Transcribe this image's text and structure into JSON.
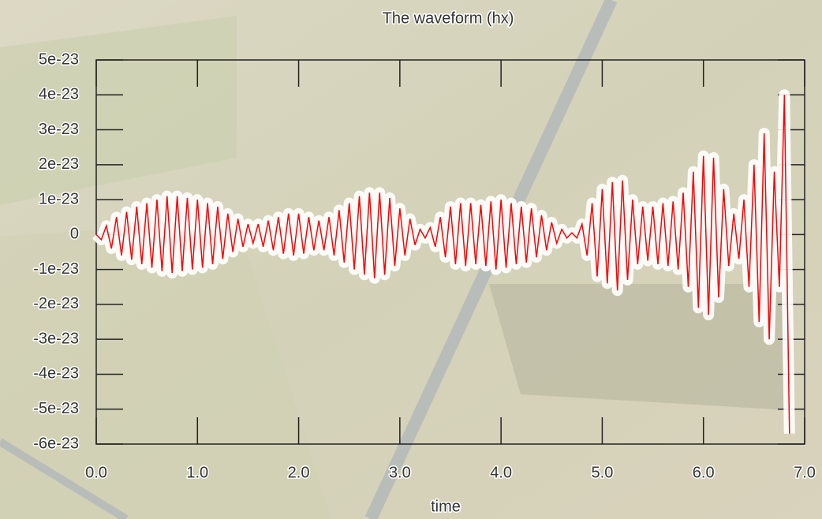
{
  "chart_data": {
    "type": "line",
    "title": "The  waveform (hx)",
    "x_label": "time",
    "color": "#ff0000",
    "xlim": [
      0,
      7
    ],
    "ylim": [
      -6e-23,
      5e-23
    ],
    "xticks": [
      {
        "value": 0,
        "label": "0.0"
      },
      {
        "value": 1,
        "label": "1.0"
      },
      {
        "value": 2,
        "label": "2.0"
      },
      {
        "value": 3,
        "label": "3.0"
      },
      {
        "value": 4,
        "label": "4.0"
      },
      {
        "value": 5,
        "label": "5.0"
      },
      {
        "value": 6,
        "label": "6.0"
      },
      {
        "value": 7,
        "label": "7.0"
      }
    ],
    "yticks": [
      5e-23,
      4e-23,
      3e-23,
      2e-23,
      1e-23,
      0,
      -1e-23,
      -2e-23,
      -3e-23,
      -4e-23,
      -5e-23,
      -6e-23
    ],
    "x": [
      0,
      0.05,
      0.1,
      0.15,
      0.2,
      0.25,
      0.3,
      0.35,
      0.4,
      0.45,
      0.5,
      0.55,
      0.6,
      0.65,
      0.7,
      0.75,
      0.8,
      0.85,
      0.9,
      0.95,
      1.0,
      1.05,
      1.1,
      1.15,
      1.2,
      1.25,
      1.3,
      1.35,
      1.4,
      1.45,
      1.5,
      1.55,
      1.6,
      1.65,
      1.7,
      1.75,
      1.8,
      1.85,
      1.9,
      1.95,
      2.0,
      2.05,
      2.1,
      2.15,
      2.2,
      2.25,
      2.3,
      2.35,
      2.4,
      2.45,
      2.5,
      2.55,
      2.6,
      2.65,
      2.7,
      2.75,
      2.8,
      2.85,
      2.9,
      2.95,
      3.0,
      3.05,
      3.1,
      3.15,
      3.2,
      3.25,
      3.3,
      3.35,
      3.4,
      3.45,
      3.5,
      3.55,
      3.6,
      3.65,
      3.7,
      3.75,
      3.8,
      3.85,
      3.9,
      3.95,
      4.0,
      4.05,
      4.1,
      4.15,
      4.2,
      4.25,
      4.3,
      4.35,
      4.4,
      4.45,
      4.5,
      4.55,
      4.6,
      4.65,
      4.7,
      4.75,
      4.8,
      4.85,
      4.9,
      4.95,
      5.0,
      5.05,
      5.1,
      5.15,
      5.2,
      5.25,
      5.3,
      5.35,
      5.4,
      5.45,
      5.5,
      5.55,
      5.6,
      5.65,
      5.7,
      5.75,
      5.8,
      5.85,
      5.9,
      5.95,
      6.0,
      6.05,
      6.1,
      6.15,
      6.2,
      6.25,
      6.3,
      6.35,
      6.4,
      6.45,
      6.5,
      6.55,
      6.6,
      6.65,
      6.7,
      6.75,
      6.8,
      6.85
    ],
    "values": [
      0,
      -1.5e-24,
      2.5e-24,
      -4e-24,
      5e-24,
      -6e-24,
      6.5e-24,
      -7.2e-24,
      8e-24,
      -8.5e-24,
      9e-24,
      -9.5e-24,
      1e-23,
      -1.05e-23,
      1.1e-23,
      -1.1e-23,
      1.1e-23,
      -1.05e-23,
      1.05e-23,
      -1e-23,
      1e-23,
      -9.5e-24,
      9e-24,
      -8.5e-24,
      8e-24,
      -7e-24,
      6e-24,
      -5e-24,
      4.5e-24,
      -3.5e-24,
      3e-24,
      -2.5e-24,
      3e-24,
      -3.5e-24,
      4e-24,
      -4.5e-24,
      5e-24,
      -5.5e-24,
      6e-24,
      -6e-24,
      6e-24,
      -5.5e-24,
      5e-24,
      -4.5e-24,
      4e-24,
      -4.5e-24,
      5e-24,
      -6e-24,
      7e-24,
      -8e-24,
      9e-24,
      -1e-23,
      1.1e-23,
      -1.15e-23,
      1.2e-23,
      -1.25e-23,
      1.2e-23,
      -1.15e-23,
      1.05e-23,
      -9e-24,
      7.5e-24,
      -6e-24,
      4.5e-24,
      -3e-24,
      1.5e-24,
      -1e-24,
      2e-24,
      -3.5e-24,
      5e-24,
      -6.5e-24,
      8e-24,
      -8.5e-24,
      9e-24,
      -9e-24,
      9e-24,
      -8.5e-24,
      8.5e-24,
      -9e-24,
      9.5e-24,
      -1e-23,
      1e-23,
      -9.5e-24,
      9e-24,
      -8.5e-24,
      8e-24,
      -8e-24,
      7.5e-24,
      -6.5e-24,
      5.5e-24,
      -4.5e-24,
      3.5e-24,
      -2.5e-24,
      1.5e-24,
      -1e-24,
      5e-25,
      -1e-24,
      3e-24,
      -6e-24,
      9e-24,
      -1.2e-23,
      1.3e-23,
      -1.4e-23,
      1.5e-23,
      -1.6e-23,
      1.55e-23,
      -1.3e-23,
      1e-23,
      -8.5e-24,
      8e-24,
      -7.5e-24,
      8e-24,
      -8.5e-24,
      9e-24,
      -9e-24,
      9.5e-24,
      -1e-23,
      1.2e-23,
      -1.5e-23,
      1.8e-23,
      -2.1e-23,
      2.25e-23,
      -2.3e-23,
      2.2e-23,
      -1.8e-23,
      1.3e-23,
      -9e-24,
      6e-24,
      -7e-24,
      1e-23,
      -1.5e-23,
      2e-23,
      -2.5e-23,
      2.9e-23,
      -3e-23,
      1.8e-23,
      -1.5e-23,
      4e-23,
      -5.7e-23
    ]
  }
}
